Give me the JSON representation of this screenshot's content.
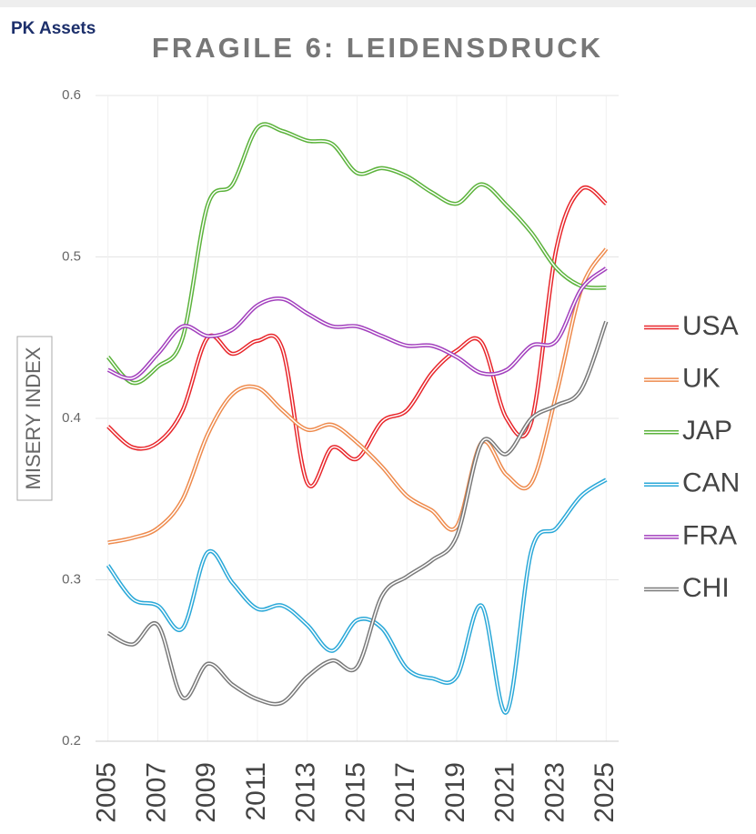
{
  "brand": "PK Assets",
  "chart_data": {
    "type": "line",
    "title": "FRAGILE 6: LEIDENSDRUCK",
    "y_label": "MISERY INDEX",
    "x": [
      2005,
      2006,
      2007,
      2008,
      2009,
      2010,
      2011,
      2012,
      2013,
      2014,
      2015,
      2016,
      2017,
      2018,
      2019,
      2020,
      2021,
      2022,
      2023,
      2024,
      2025
    ],
    "xlim": [
      2004.5,
      2025.5
    ],
    "xticks": [
      2005,
      2007,
      2009,
      2011,
      2013,
      2015,
      2017,
      2019,
      2021,
      2023,
      2025
    ],
    "ylim": [
      0.2,
      0.6
    ],
    "yticks": [
      0.2,
      0.3,
      0.4,
      0.5,
      0.6
    ],
    "grid": true,
    "legend": "right",
    "series": [
      {
        "name": "USA",
        "color": "#e8262b",
        "values": [
          0.395,
          0.382,
          0.385,
          0.405,
          0.45,
          0.44,
          0.448,
          0.443,
          0.36,
          0.382,
          0.375,
          0.398,
          0.405,
          0.428,
          0.442,
          0.447,
          0.4,
          0.398,
          0.505,
          0.542,
          0.533
        ]
      },
      {
        "name": "UK",
        "color": "#ee8a4c",
        "values": [
          0.323,
          0.326,
          0.332,
          0.35,
          0.39,
          0.415,
          0.419,
          0.405,
          0.393,
          0.396,
          0.385,
          0.37,
          0.352,
          0.343,
          0.333,
          0.385,
          0.365,
          0.36,
          0.415,
          0.48,
          0.505
        ]
      },
      {
        "name": "JAP",
        "color": "#5cb33c",
        "values": [
          0.438,
          0.422,
          0.432,
          0.45,
          0.532,
          0.545,
          0.58,
          0.578,
          0.572,
          0.57,
          0.552,
          0.555,
          0.55,
          0.54,
          0.533,
          0.545,
          0.532,
          0.515,
          0.493,
          0.482,
          0.481
        ]
      },
      {
        "name": "CAN",
        "color": "#2aa8d8",
        "values": [
          0.309,
          0.288,
          0.284,
          0.27,
          0.317,
          0.298,
          0.282,
          0.284,
          0.272,
          0.256,
          0.275,
          0.27,
          0.245,
          0.239,
          0.24,
          0.284,
          0.218,
          0.318,
          0.332,
          0.352,
          0.362
        ]
      },
      {
        "name": "FRA",
        "color": "#a23fbd",
        "values": [
          0.43,
          0.425,
          0.44,
          0.457,
          0.451,
          0.455,
          0.47,
          0.474,
          0.465,
          0.457,
          0.457,
          0.451,
          0.445,
          0.445,
          0.438,
          0.428,
          0.43,
          0.445,
          0.448,
          0.48,
          0.493
        ]
      },
      {
        "name": "CHI",
        "color": "#7a7a7a",
        "values": [
          0.267,
          0.26,
          0.272,
          0.227,
          0.248,
          0.235,
          0.226,
          0.224,
          0.24,
          0.25,
          0.246,
          0.29,
          0.302,
          0.312,
          0.327,
          0.385,
          0.378,
          0.4,
          0.408,
          0.418,
          0.46
        ]
      }
    ]
  }
}
